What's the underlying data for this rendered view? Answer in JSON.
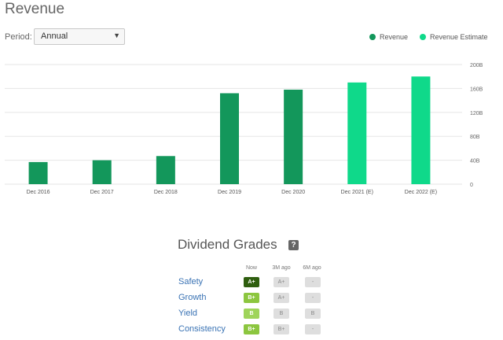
{
  "header": {
    "title": "Revenue",
    "period_label": "Period:",
    "period_value": "Annual"
  },
  "legend": [
    {
      "label": "Revenue",
      "color": "#13975b"
    },
    {
      "label": "Revenue Estimate",
      "color": "#0fd98a"
    }
  ],
  "chart_data": {
    "type": "bar",
    "categories": [
      "Dec 2016",
      "Dec 2017",
      "Dec 2018",
      "Dec 2019",
      "Dec 2020",
      "Dec 2021 (E)",
      "Dec 2022 (E)"
    ],
    "values": [
      37,
      40,
      47,
      152,
      158,
      170,
      180
    ],
    "estimate": [
      false,
      false,
      false,
      false,
      false,
      true,
      true
    ],
    "unit": "B",
    "yticks": [
      "0",
      "40B",
      "80B",
      "120B",
      "160B",
      "200B"
    ],
    "ylim": [
      0,
      200
    ],
    "y_axis_position": "right",
    "grid": true,
    "colors": {
      "actual": "#13975b",
      "estimate": "#0fd98a"
    }
  },
  "dividend_grades": {
    "title": "Dividend Grades",
    "help": "?",
    "columns": [
      "Now",
      "3M ago",
      "6M ago"
    ],
    "rows": [
      {
        "label": "Safety",
        "grades": [
          "A+",
          "A+",
          "-"
        ],
        "now_color": "#2f5e0f",
        "now_text": "#ffffff"
      },
      {
        "label": "Growth",
        "grades": [
          "B+",
          "A+",
          "-"
        ],
        "now_color": "#8cc63f",
        "now_text": "#ffffff"
      },
      {
        "label": "Yield",
        "grades": [
          "B",
          "B",
          "B"
        ],
        "now_color": "#9fd45a",
        "now_text": "#ffffff"
      },
      {
        "label": "Consistency",
        "grades": [
          "B+",
          "B+",
          "-"
        ],
        "now_color": "#8cc63f",
        "now_text": "#ffffff"
      }
    ]
  }
}
